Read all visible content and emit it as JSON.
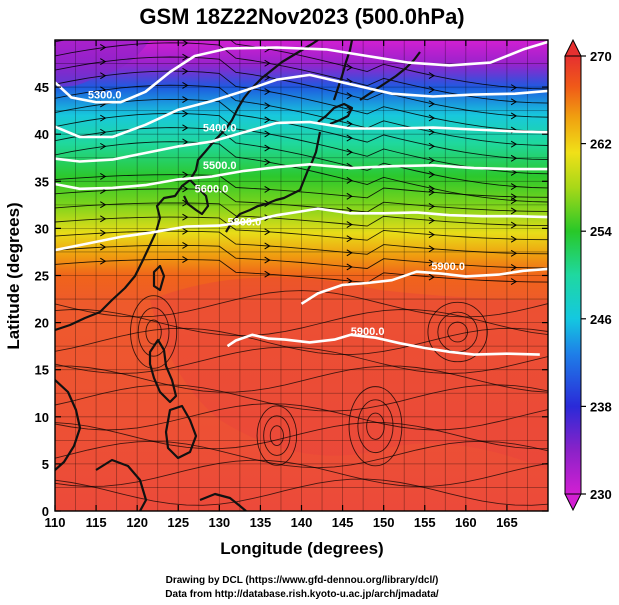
{
  "title": "GSM 18Z22Nov2023 (500.0hPa)",
  "xlabel": "Longitude (degrees)",
  "ylabel": "Latitude (degrees)",
  "credit_line1": "Drawing by DCL (https://www.gfd-dennou.org/library/dcl/)",
  "credit_line2": "Data from http://database.rish.kyoto-u.ac.jp/arch/jmadata/",
  "chart_data": {
    "type": "heatmap",
    "x_range": [
      110,
      170
    ],
    "y_range": [
      0,
      50
    ],
    "x_ticks": [
      "110",
      "115",
      "120",
      "125",
      "130",
      "135",
      "140",
      "145",
      "150",
      "155",
      "160",
      "165"
    ],
    "y_ticks": [
      "0",
      "5",
      "10",
      "15",
      "20",
      "25",
      "30",
      "35",
      "40",
      "45"
    ],
    "colorbar": {
      "range": [
        230,
        270
      ],
      "tick_labels": [
        "230",
        "238",
        "246",
        "254",
        "262",
        "270"
      ],
      "colors": [
        "#d21fd2",
        "#8a22c8",
        "#2a2ad8",
        "#1e7fe8",
        "#14c8e0",
        "#1fd8a0",
        "#28c828",
        "#a8d818",
        "#f0e018",
        "#f0a010",
        "#f05a18",
        "#e63030"
      ]
    },
    "contours": [
      {
        "label": "5300.0",
        "label_lon": 114,
        "label_lat": 43.8,
        "path": [
          [
            110,
            45.5
          ],
          [
            112,
            43.9
          ],
          [
            115,
            43.4
          ],
          [
            118,
            43.4
          ],
          [
            121,
            44.5
          ],
          [
            124,
            46.6
          ],
          [
            127,
            48.3
          ],
          [
            131,
            49.1
          ],
          [
            137,
            49.2
          ],
          [
            143,
            49
          ],
          [
            148,
            48.3
          ],
          [
            153,
            47.6
          ],
          [
            158,
            47.3
          ],
          [
            163,
            47.6
          ],
          [
            167,
            49
          ],
          [
            170,
            49.8
          ]
        ]
      },
      {
        "label": "5400.0",
        "label_lon": 128,
        "label_lat": 40.3,
        "path": [
          [
            110,
            40.8
          ],
          [
            113,
            39.7
          ],
          [
            117,
            39.7
          ],
          [
            121,
            41
          ],
          [
            125,
            42.6
          ],
          [
            129,
            43.5
          ],
          [
            133,
            44.6
          ],
          [
            137,
            45.8
          ],
          [
            141,
            46.3
          ],
          [
            146,
            45.3
          ],
          [
            151,
            44.3
          ],
          [
            156,
            44
          ],
          [
            161,
            44.2
          ],
          [
            166,
            44.3
          ],
          [
            170,
            44.6
          ]
        ]
      },
      {
        "label": "5500.0",
        "label_lon": 128,
        "label_lat": 36.3,
        "path": [
          [
            110,
            37.4
          ],
          [
            113,
            37.1
          ],
          [
            117,
            37.3
          ],
          [
            121,
            38
          ],
          [
            125,
            38.7
          ],
          [
            129,
            39.2
          ],
          [
            133,
            40.2
          ],
          [
            137,
            41.2
          ],
          [
            141,
            41.3
          ],
          [
            146,
            40.6
          ],
          [
            151,
            40.6
          ],
          [
            156,
            40.7
          ],
          [
            161,
            40.5
          ],
          [
            166,
            40.3
          ],
          [
            170,
            40.2
          ]
        ]
      },
      {
        "label": "5600.0",
        "label_lon": 127,
        "label_lat": 33.8,
        "path": [
          [
            110,
            34.7
          ],
          [
            113,
            34.2
          ],
          [
            117,
            34.3
          ],
          [
            121,
            34.6
          ],
          [
            125,
            35.2
          ],
          [
            129,
            35.5
          ],
          [
            133,
            36.1
          ],
          [
            137,
            36.5
          ],
          [
            141,
            36.8
          ],
          [
            146,
            36.4
          ],
          [
            151,
            36.6
          ],
          [
            156,
            36.7
          ],
          [
            161,
            36.4
          ],
          [
            166,
            36.3
          ],
          [
            170,
            36.3
          ]
        ]
      },
      {
        "label": "5800.0",
        "label_lon": 131,
        "label_lat": 30.3,
        "path": [
          [
            110,
            27.7
          ],
          [
            114,
            28.4
          ],
          [
            118,
            29.1
          ],
          [
            122,
            29.6
          ],
          [
            126,
            30.2
          ],
          [
            130,
            30.3
          ],
          [
            134,
            30.8
          ],
          [
            137,
            31.4
          ],
          [
            140,
            31.8
          ],
          [
            142,
            32.1
          ],
          [
            146,
            31.6
          ],
          [
            150,
            31.6
          ],
          [
            154,
            31.7
          ],
          [
            158,
            31.4
          ],
          [
            162,
            31.3
          ],
          [
            166,
            31.3
          ],
          [
            170,
            31.2
          ]
        ]
      },
      {
        "label": "5900.0",
        "label_lon": 155.8,
        "label_lat": 25.6,
        "path": [
          [
            140,
            22
          ],
          [
            142,
            23.1
          ],
          [
            145,
            24
          ],
          [
            148,
            24.2
          ],
          [
            151,
            24.5
          ],
          [
            154,
            25.4
          ],
          [
            157,
            25.2
          ],
          [
            160,
            24.9
          ],
          [
            164,
            25.1
          ],
          [
            167,
            25.5
          ],
          [
            170,
            25.7
          ]
        ]
      },
      {
        "label": "5900.0",
        "label_lon": 146,
        "label_lat": 18.7,
        "path": [
          [
            131,
            17.5
          ],
          [
            132,
            18.1
          ],
          [
            134,
            18.7
          ],
          [
            136,
            18.3
          ],
          [
            138,
            18.2
          ],
          [
            141,
            17.9
          ],
          [
            144,
            18.2
          ],
          [
            146,
            18.7
          ],
          [
            149,
            18.4
          ],
          [
            152,
            17.8
          ],
          [
            155,
            17.3
          ],
          [
            158,
            16.9
          ],
          [
            161,
            16.6
          ],
          [
            165,
            16.7
          ],
          [
            169,
            16.6
          ]
        ]
      }
    ]
  }
}
